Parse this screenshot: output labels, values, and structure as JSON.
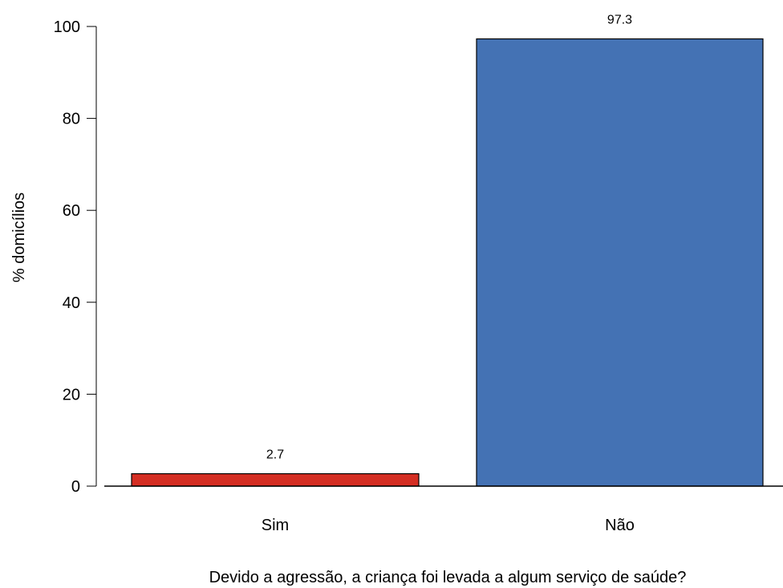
{
  "chart_data": {
    "type": "bar",
    "categories": [
      "Sim",
      "Não"
    ],
    "values": [
      2.7,
      97.3
    ],
    "value_labels": [
      "2.7",
      "97.3"
    ],
    "colors": [
      "#d42e23",
      "#4472b4"
    ],
    "title": "",
    "xlabel": "Devido a agressão, a criança foi levada a algum serviço de saúde?",
    "ylabel": "% domicílios",
    "ylim": [
      0,
      100
    ],
    "yticks": [
      0,
      20,
      40,
      60,
      80,
      100
    ],
    "grid": false,
    "legend": "none"
  }
}
